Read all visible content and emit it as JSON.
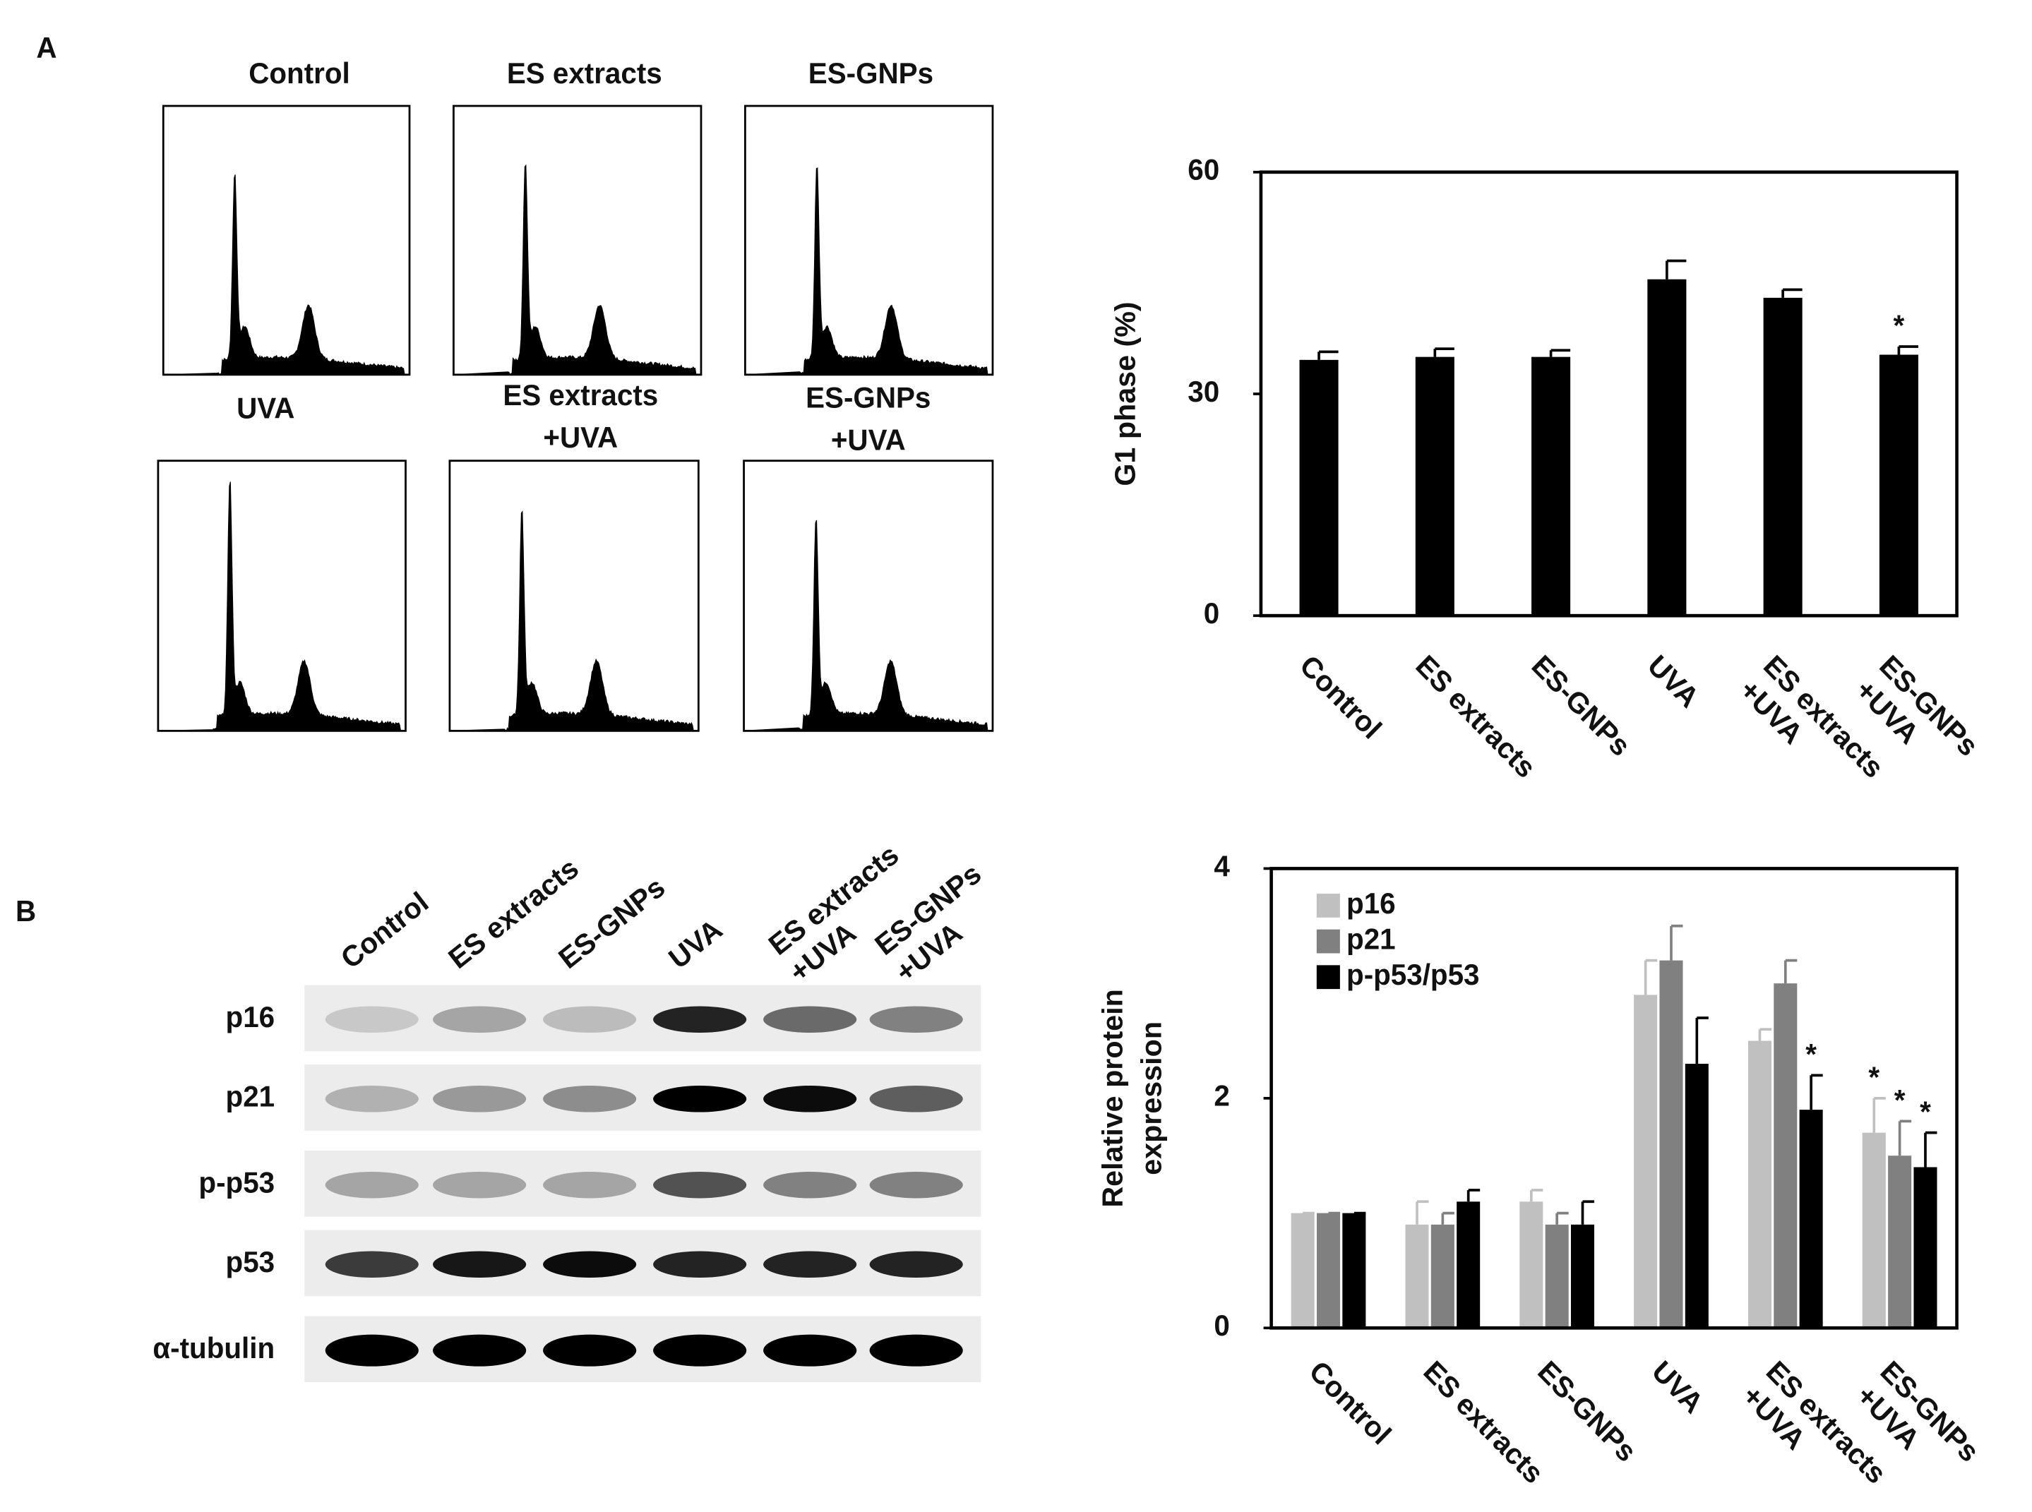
{
  "panels": {
    "a": "A",
    "b": "B"
  },
  "histograms": {
    "titles": [
      "Control",
      "ES extracts",
      "ES-GNPs",
      "UVA",
      "ES extracts\n+UVA",
      "ES-GNPs\n+UVA"
    ]
  },
  "blot": {
    "lanes": [
      "Control",
      "ES extracts",
      "ES-GNPs",
      "UVA",
      "ES extracts\n+UVA",
      "ES-GNPs\n+UVA"
    ],
    "rows": [
      "p16",
      "p21",
      "p-p53",
      "p53",
      "α-tubulin"
    ]
  },
  "chart_data": [
    {
      "type": "bar",
      "y_label": "G1 phase (%)",
      "categories": [
        "Control",
        "ES extracts",
        "ES-GNPs",
        "UVA",
        "ES extracts\n+UVA",
        "ES-GNPs\n+UVA"
      ],
      "values": [
        34.6,
        35,
        35,
        45.5,
        43,
        35.3
      ],
      "errors": [
        1.1,
        1.1,
        0.9,
        2.5,
        1.1,
        1.1
      ],
      "color": "#000000",
      "ylim": [
        0,
        60
      ],
      "yticks": [
        0,
        30,
        60
      ],
      "annotations": [
        {
          "category": "ES-GNPs\n+UVA",
          "text": "*"
        }
      ]
    },
    {
      "type": "bar",
      "y_label": "Relative protein\nexpression",
      "categories": [
        "Control",
        "ES extracts",
        "ES-GNPs",
        "UVA",
        "ES extracts\n+UVA",
        "ES-GNPs\n+UVA"
      ],
      "series": [
        {
          "name": "p16",
          "color": "#c0c0c0",
          "values": [
            1.0,
            0.9,
            1.1,
            2.9,
            2.5,
            1.7
          ],
          "errors": [
            0,
            0.2,
            0.1,
            0.3,
            0.1,
            0.3
          ]
        },
        {
          "name": "p21",
          "color": "#808080",
          "values": [
            1.0,
            0.9,
            0.9,
            3.2,
            3.0,
            1.5
          ],
          "errors": [
            0,
            0.1,
            0.1,
            0.3,
            0.2,
            0.3
          ]
        },
        {
          "name": "p-p53/p53",
          "color": "#000000",
          "values": [
            1.0,
            1.1,
            0.9,
            2.3,
            1.9,
            1.4
          ],
          "errors": [
            0,
            0.1,
            0.2,
            0.4,
            0.3,
            0.3
          ]
        }
      ],
      "ylim": [
        0,
        4
      ],
      "yticks": [
        0,
        2,
        4
      ],
      "legend": "upper left",
      "annotations": [
        {
          "series": "p-p53/p53",
          "category": "ES extracts\n+UVA",
          "text": "*"
        },
        {
          "series": "p16",
          "category": "ES-GNPs\n+UVA",
          "text": "*"
        },
        {
          "series": "p21",
          "category": "ES-GNPs\n+UVA",
          "text": "*"
        },
        {
          "series": "p-p53/p53",
          "category": "ES-GNPs\n+UVA",
          "text": "*"
        }
      ]
    }
  ]
}
